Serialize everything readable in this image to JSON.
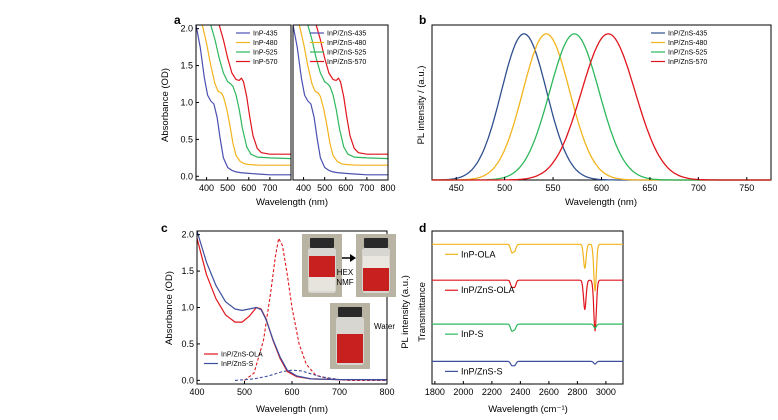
{
  "chart_data": [
    {
      "panel": "a",
      "type": "line",
      "ylabel": "Absorbance (OD)",
      "xlabel": "Wavelength (nm)",
      "ylim": [
        -0.05,
        2.05
      ],
      "yticks": [
        "0.0",
        "0.5",
        "1.0",
        "1.5",
        "2.0"
      ],
      "subplots": [
        {
          "xlim": [
            350,
            800
          ],
          "xticks": [
            "400",
            "500",
            "600",
            "700"
          ],
          "legend": "top-right",
          "series": [
            {
              "name": "InP-435",
              "color": "#4b4fb0",
              "x": [
                350,
                370,
                390,
                405,
                420,
                435,
                450,
                465,
                480,
                500,
                520,
                540,
                560,
                600,
                650,
                700,
                800
              ],
              "y": [
                2.05,
                1.75,
                1.33,
                1.1,
                1.02,
                0.98,
                0.8,
                0.5,
                0.25,
                0.12,
                0.08,
                0.06,
                0.05,
                0.04,
                0.03,
                0.02,
                0.02
              ]
            },
            {
              "name": "InP-480",
              "color": "#f2b41e",
              "x": [
                350,
                380,
                400,
                420,
                440,
                455,
                470,
                480,
                495,
                510,
                525,
                540,
                560,
                580,
                600,
                650,
                700,
                800
              ],
              "y": [
                2.1,
                2.05,
                1.8,
                1.5,
                1.25,
                1.15,
                1.13,
                1.08,
                0.92,
                0.7,
                0.45,
                0.28,
                0.2,
                0.17,
                0.16,
                0.15,
                0.15,
                0.15
              ]
            },
            {
              "name": "InP-525",
              "color": "#2eb85c",
              "x": [
                350,
                420,
                440,
                460,
                480,
                500,
                515,
                525,
                540,
                555,
                570,
                590,
                610,
                640,
                700,
                800
              ],
              "y": [
                2.1,
                2.05,
                1.85,
                1.6,
                1.4,
                1.28,
                1.25,
                1.22,
                1.1,
                0.9,
                0.65,
                0.4,
                0.3,
                0.26,
                0.25,
                0.24
              ]
            },
            {
              "name": "InP-570",
              "color": "#e0151c",
              "x": [
                350,
                460,
                480,
                500,
                520,
                540,
                555,
                565,
                575,
                590,
                605,
                620,
                640,
                660,
                700,
                800
              ],
              "y": [
                2.1,
                2.05,
                1.85,
                1.6,
                1.4,
                1.31,
                1.3,
                1.33,
                1.28,
                1.08,
                0.8,
                0.55,
                0.38,
                0.32,
                0.3,
                0.3
              ]
            }
          ]
        },
        {
          "xlim": [
            350,
            800
          ],
          "xticks": [
            "400",
            "500",
            "600",
            "700",
            "800"
          ],
          "legend": "top-right",
          "series": [
            {
              "name": "InP/ZnS-435",
              "color": "#4b4fb0",
              "x": [
                350,
                370,
                390,
                405,
                420,
                435,
                450,
                465,
                480,
                500,
                520,
                540,
                560,
                600,
                650,
                700,
                800
              ],
              "y": [
                2.05,
                1.75,
                1.33,
                1.1,
                1.02,
                0.98,
                0.8,
                0.5,
                0.25,
                0.12,
                0.08,
                0.06,
                0.05,
                0.04,
                0.03,
                0.02,
                0.02
              ]
            },
            {
              "name": "InP/ZnS-480",
              "color": "#f2b41e",
              "x": [
                350,
                380,
                400,
                420,
                440,
                455,
                470,
                480,
                495,
                510,
                525,
                540,
                560,
                580,
                600,
                650,
                700,
                800
              ],
              "y": [
                2.1,
                2.05,
                1.8,
                1.5,
                1.25,
                1.15,
                1.13,
                1.08,
                0.92,
                0.7,
                0.45,
                0.28,
                0.2,
                0.17,
                0.16,
                0.15,
                0.15,
                0.15
              ]
            },
            {
              "name": "InP/ZnS-525",
              "color": "#2eb85c",
              "x": [
                350,
                420,
                440,
                460,
                480,
                500,
                515,
                525,
                540,
                555,
                570,
                590,
                610,
                640,
                700,
                800
              ],
              "y": [
                2.1,
                2.05,
                1.85,
                1.6,
                1.4,
                1.28,
                1.25,
                1.22,
                1.1,
                0.9,
                0.65,
                0.4,
                0.3,
                0.26,
                0.25,
                0.24
              ]
            },
            {
              "name": "InP/ZnS-570",
              "color": "#e0151c",
              "x": [
                350,
                460,
                480,
                500,
                520,
                540,
                555,
                565,
                575,
                590,
                605,
                620,
                640,
                660,
                700,
                800
              ],
              "y": [
                2.1,
                2.05,
                1.85,
                1.6,
                1.4,
                1.31,
                1.3,
                1.33,
                1.28,
                1.08,
                0.8,
                0.55,
                0.38,
                0.32,
                0.3,
                0.3
              ]
            }
          ]
        }
      ]
    },
    {
      "panel": "b",
      "type": "line",
      "xlabel": "Wavelength (nm)",
      "ylabel": "PL intensity / (a.u.)",
      "xlim": [
        425,
        775
      ],
      "xticks": [
        "450",
        "500",
        "550",
        "600",
        "650",
        "700",
        "750"
      ],
      "legend": "top-right",
      "series": [
        {
          "name": "InP/ZnS-435",
          "color": "#2f4f8f",
          "peak": 520,
          "fwhm": 55
        },
        {
          "name": "InP/ZnS-480",
          "color": "#f2b41e",
          "peak": 543,
          "fwhm": 57
        },
        {
          "name": "InP/ZnS-525",
          "color": "#2eb85c",
          "peak": 572,
          "fwhm": 60
        },
        {
          "name": "InP/ZnS-570",
          "color": "#e0151c",
          "peak": 607,
          "fwhm": 65
        }
      ]
    },
    {
      "panel": "c",
      "type": "line",
      "xlabel": "Wavelength (nm)",
      "ylabel": "Absorbance (OD)",
      "xlim": [
        400,
        800
      ],
      "ylim": [
        -0.05,
        2.05
      ],
      "xticks": [
        "400",
        "500",
        "600",
        "700",
        "800"
      ],
      "yticks": [
        "0.0",
        "0.5",
        "1.0",
        "1.5",
        "2.0"
      ],
      "legend": "bottom-left",
      "series": [
        {
          "name": "InP/ZnS-OLA",
          "color": "#e0151c",
          "x": [
            400,
            420,
            440,
            460,
            480,
            495,
            510,
            525,
            535,
            545,
            560,
            575,
            590,
            610,
            640,
            700,
            800
          ],
          "y": [
            1.95,
            1.45,
            1.12,
            0.9,
            0.8,
            0.8,
            0.88,
            1.0,
            0.98,
            0.85,
            0.55,
            0.3,
            0.12,
            0.05,
            0.02,
            0.01,
            0.01
          ]
        },
        {
          "name": "InP/ZnS-S",
          "color": "#3d4f9e",
          "x": [
            400,
            420,
            440,
            460,
            480,
            495,
            510,
            525,
            535,
            545,
            560,
            575,
            590,
            610,
            640,
            700,
            800
          ],
          "y": [
            2.05,
            1.62,
            1.3,
            1.08,
            0.98,
            0.96,
            0.98,
            1.0,
            0.97,
            0.84,
            0.56,
            0.32,
            0.14,
            0.06,
            0.02,
            0.01,
            0.01
          ]
        }
      ],
      "pl_series": [
        {
          "color": "#e0151c",
          "style": "dashed",
          "x": [
            500,
            520,
            540,
            555,
            565,
            572,
            580,
            590,
            600,
            615,
            630,
            650,
            680,
            720,
            800
          ],
          "y": [
            0.0,
            0.1,
            0.55,
            1.2,
            1.7,
            1.95,
            1.85,
            1.45,
            1.0,
            0.5,
            0.22,
            0.07,
            0.02,
            0.0,
            0.0
          ]
        },
        {
          "color": "#3d4f9e",
          "style": "dashed",
          "x": [
            480,
            520,
            550,
            580,
            600,
            620,
            640,
            660,
            700,
            800
          ],
          "y": [
            0.0,
            0.02,
            0.06,
            0.12,
            0.14,
            0.13,
            0.09,
            0.05,
            0.01,
            0.0
          ]
        }
      ],
      "annotations": {
        "arrow_label_top": "HEX",
        "arrow_label_bottom": "NMF",
        "water_label": "Water"
      }
    },
    {
      "panel": "d",
      "type": "line",
      "xlabel": "Wavelength (cm⁻¹)",
      "ylabel": "Transmittance",
      "ylabel2": "PL intensity (a.u.)",
      "xlim": [
        1780,
        3120
      ],
      "xticks": [
        "1800",
        "2000",
        "2200",
        "2400",
        "2600",
        "2800",
        "3000"
      ],
      "legend": "inline",
      "series": [
        {
          "name": "InP-OLA",
          "color": "#f2b41e",
          "baseline": 1.0,
          "dips": [
            [
              2340,
              0.06
            ],
            [
              2360,
              0.05
            ],
            [
              2852,
              0.18
            ],
            [
              2924,
              0.35
            ]
          ]
        },
        {
          "name": "InP/ZnS-OLA",
          "color": "#e0151c",
          "baseline": 0.73,
          "dips": [
            [
              2340,
              0.05
            ],
            [
              2360,
              0.05
            ],
            [
              2852,
              0.22
            ],
            [
              2924,
              0.38
            ]
          ]
        },
        {
          "name": "InP-S",
          "color": "#2eb85c",
          "baseline": 0.4,
          "dips": [
            [
              2340,
              0.05
            ],
            [
              2360,
              0.04
            ],
            [
              2924,
              0.03
            ]
          ]
        },
        {
          "name": "InP/ZnS-S",
          "color": "#3d4f9e",
          "baseline": 0.12,
          "dips": [
            [
              2340,
              0.03
            ],
            [
              2360,
              0.03
            ],
            [
              2924,
              0.02
            ]
          ]
        }
      ]
    }
  ]
}
